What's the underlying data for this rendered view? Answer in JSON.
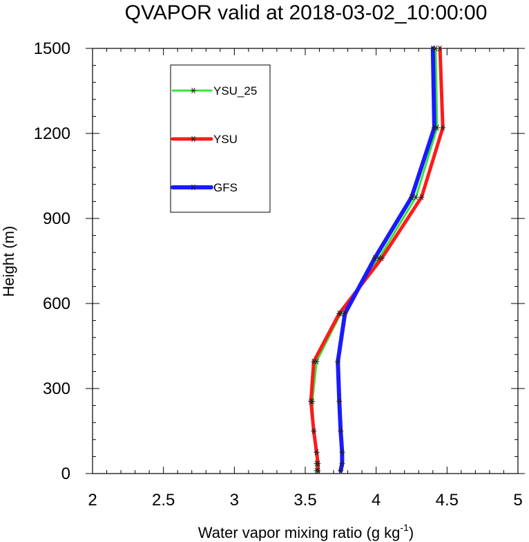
{
  "chart_data": {
    "type": "line",
    "title": "QVAPOR valid at 2018-03-02_10:00:00",
    "xlabel": "Water vapor mixing ratio (g kg",
    "xlabel_sup": "-1",
    "xlabel_end": ")",
    "ylabel": "Height (m)",
    "xlim": [
      2,
      5
    ],
    "ylim": [
      0,
      1500
    ],
    "x_ticks": [
      "2",
      "2.5",
      "3",
      "3.5",
      "4",
      "4.5",
      "5"
    ],
    "y_ticks": [
      "0",
      "300",
      "600",
      "900",
      "1200",
      "1500"
    ],
    "marker": "asterisk",
    "legend_position": "upper-left",
    "series": [
      {
        "name": "YSU_25",
        "color": "#33e633",
        "width": 3,
        "points": [
          [
            3.58,
            10
          ],
          [
            3.58,
            35
          ],
          [
            3.58,
            75
          ],
          [
            3.56,
            150
          ],
          [
            3.55,
            255
          ],
          [
            3.58,
            395
          ],
          [
            3.75,
            565
          ],
          [
            4.02,
            760
          ],
          [
            4.28,
            975
          ],
          [
            4.43,
            1220
          ],
          [
            4.42,
            1500
          ]
        ]
      },
      {
        "name": "YSU",
        "color": "#ff1a1a",
        "width": 5,
        "points": [
          [
            3.59,
            10
          ],
          [
            3.59,
            35
          ],
          [
            3.58,
            75
          ],
          [
            3.56,
            150
          ],
          [
            3.54,
            255
          ],
          [
            3.56,
            395
          ],
          [
            3.74,
            565
          ],
          [
            4.04,
            760
          ],
          [
            4.32,
            975
          ],
          [
            4.47,
            1220
          ],
          [
            4.45,
            1500
          ]
        ]
      },
      {
        "name": "GFS",
        "color": "#1a1aff",
        "width": 6,
        "points": [
          [
            3.75,
            10
          ],
          [
            3.76,
            35
          ],
          [
            3.76,
            75
          ],
          [
            3.75,
            150
          ],
          [
            3.74,
            255
          ],
          [
            3.73,
            395
          ],
          [
            3.78,
            565
          ],
          [
            3.99,
            760
          ],
          [
            4.25,
            975
          ],
          [
            4.41,
            1220
          ],
          [
            4.4,
            1500
          ]
        ]
      }
    ]
  }
}
